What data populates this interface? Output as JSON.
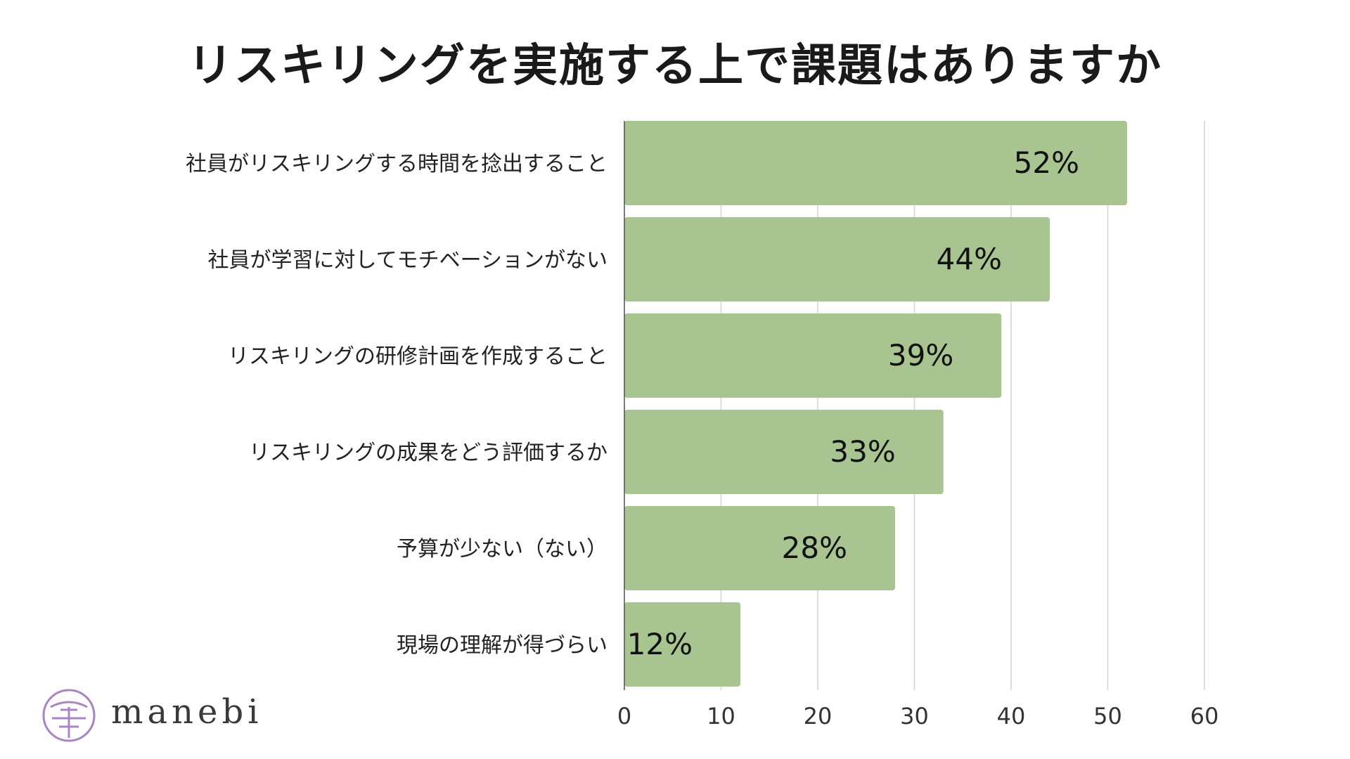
{
  "title": "リスキリングを実施する上で課題はありますか",
  "logo": {
    "text": "manebi"
  },
  "colors": {
    "bar": "#a7c491",
    "grid": "#d4d4d4",
    "axis": "#4d4d4d",
    "logo": "#a985c4"
  },
  "chart_data": {
    "type": "bar",
    "orientation": "horizontal",
    "title": "リスキリングを実施する上で課題はありますか",
    "categories": [
      "社員がリスキリングする時間を捻出すること",
      "社員が学習に対してモチベーションがない",
      "リスキリングの研修計画を作成すること",
      "リスキリングの成果をどう評価するか",
      "予算が少ない（ない）",
      "現場の理解が得づらい"
    ],
    "values": [
      52,
      44,
      39,
      33,
      28,
      12
    ],
    "data_labels": [
      "52%",
      "44%",
      "39%",
      "33%",
      "28%",
      "12%"
    ],
    "xlim": [
      0,
      60
    ],
    "xticks": [
      0,
      10,
      20,
      30,
      40,
      50,
      60
    ],
    "grid": true,
    "legend": "none"
  }
}
